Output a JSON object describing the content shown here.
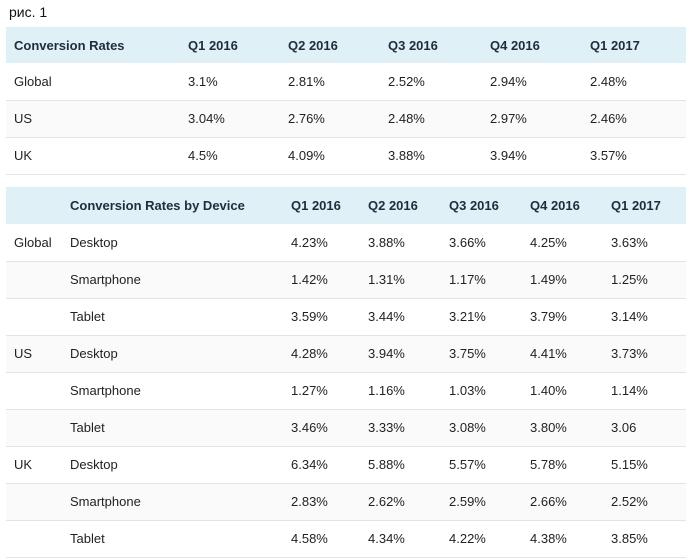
{
  "caption": "рис. 1",
  "table1": {
    "headers": [
      "Conversion Rates",
      "Q1 2016",
      "Q2 2016",
      "Q3 2016",
      "Q4 2016",
      "Q1 2017"
    ],
    "rows": [
      [
        "Global",
        "3.1%",
        "2.81%",
        "2.52%",
        "2.94%",
        "2.48%"
      ],
      [
        "US",
        "3.04%",
        "2.76%",
        "2.48%",
        "2.97%",
        "2.46%"
      ],
      [
        "UK",
        "4.5%",
        "4.09%",
        "3.88%",
        "3.94%",
        "3.57%"
      ]
    ]
  },
  "table2": {
    "headers": [
      "",
      "Conversion Rates by Device",
      "Q1 2016",
      "Q2 2016",
      "Q3 2016",
      "Q4 2016",
      "Q1 2017"
    ],
    "rows": [
      [
        "Global",
        "Desktop",
        "4.23%",
        "3.88%",
        "3.66%",
        "4.25%",
        "3.63%"
      ],
      [
        "",
        "Smartphone",
        "1.42%",
        "1.31%",
        "1.17%",
        "1.49%",
        "1.25%"
      ],
      [
        "",
        "Tablet",
        "3.59%",
        "3.44%",
        "3.21%",
        "3.79%",
        "3.14%"
      ],
      [
        "US",
        "Desktop",
        "4.28%",
        "3.94%",
        "3.75%",
        "4.41%",
        "3.73%"
      ],
      [
        "",
        "Smartphone",
        "1.27%",
        "1.16%",
        "1.03%",
        "1.40%",
        "1.14%"
      ],
      [
        "",
        "Tablet",
        "3.46%",
        "3.33%",
        "3.08%",
        "3.80%",
        "3.06"
      ],
      [
        "UK",
        "Desktop",
        "6.34%",
        "5.88%",
        "5.57%",
        "5.78%",
        "5.15%"
      ],
      [
        "",
        "Smartphone",
        "2.83%",
        "2.62%",
        "2.59%",
        "2.66%",
        "2.52%"
      ],
      [
        "",
        "Tablet",
        "4.58%",
        "4.34%",
        "4.22%",
        "4.38%",
        "3.85%"
      ]
    ]
  }
}
